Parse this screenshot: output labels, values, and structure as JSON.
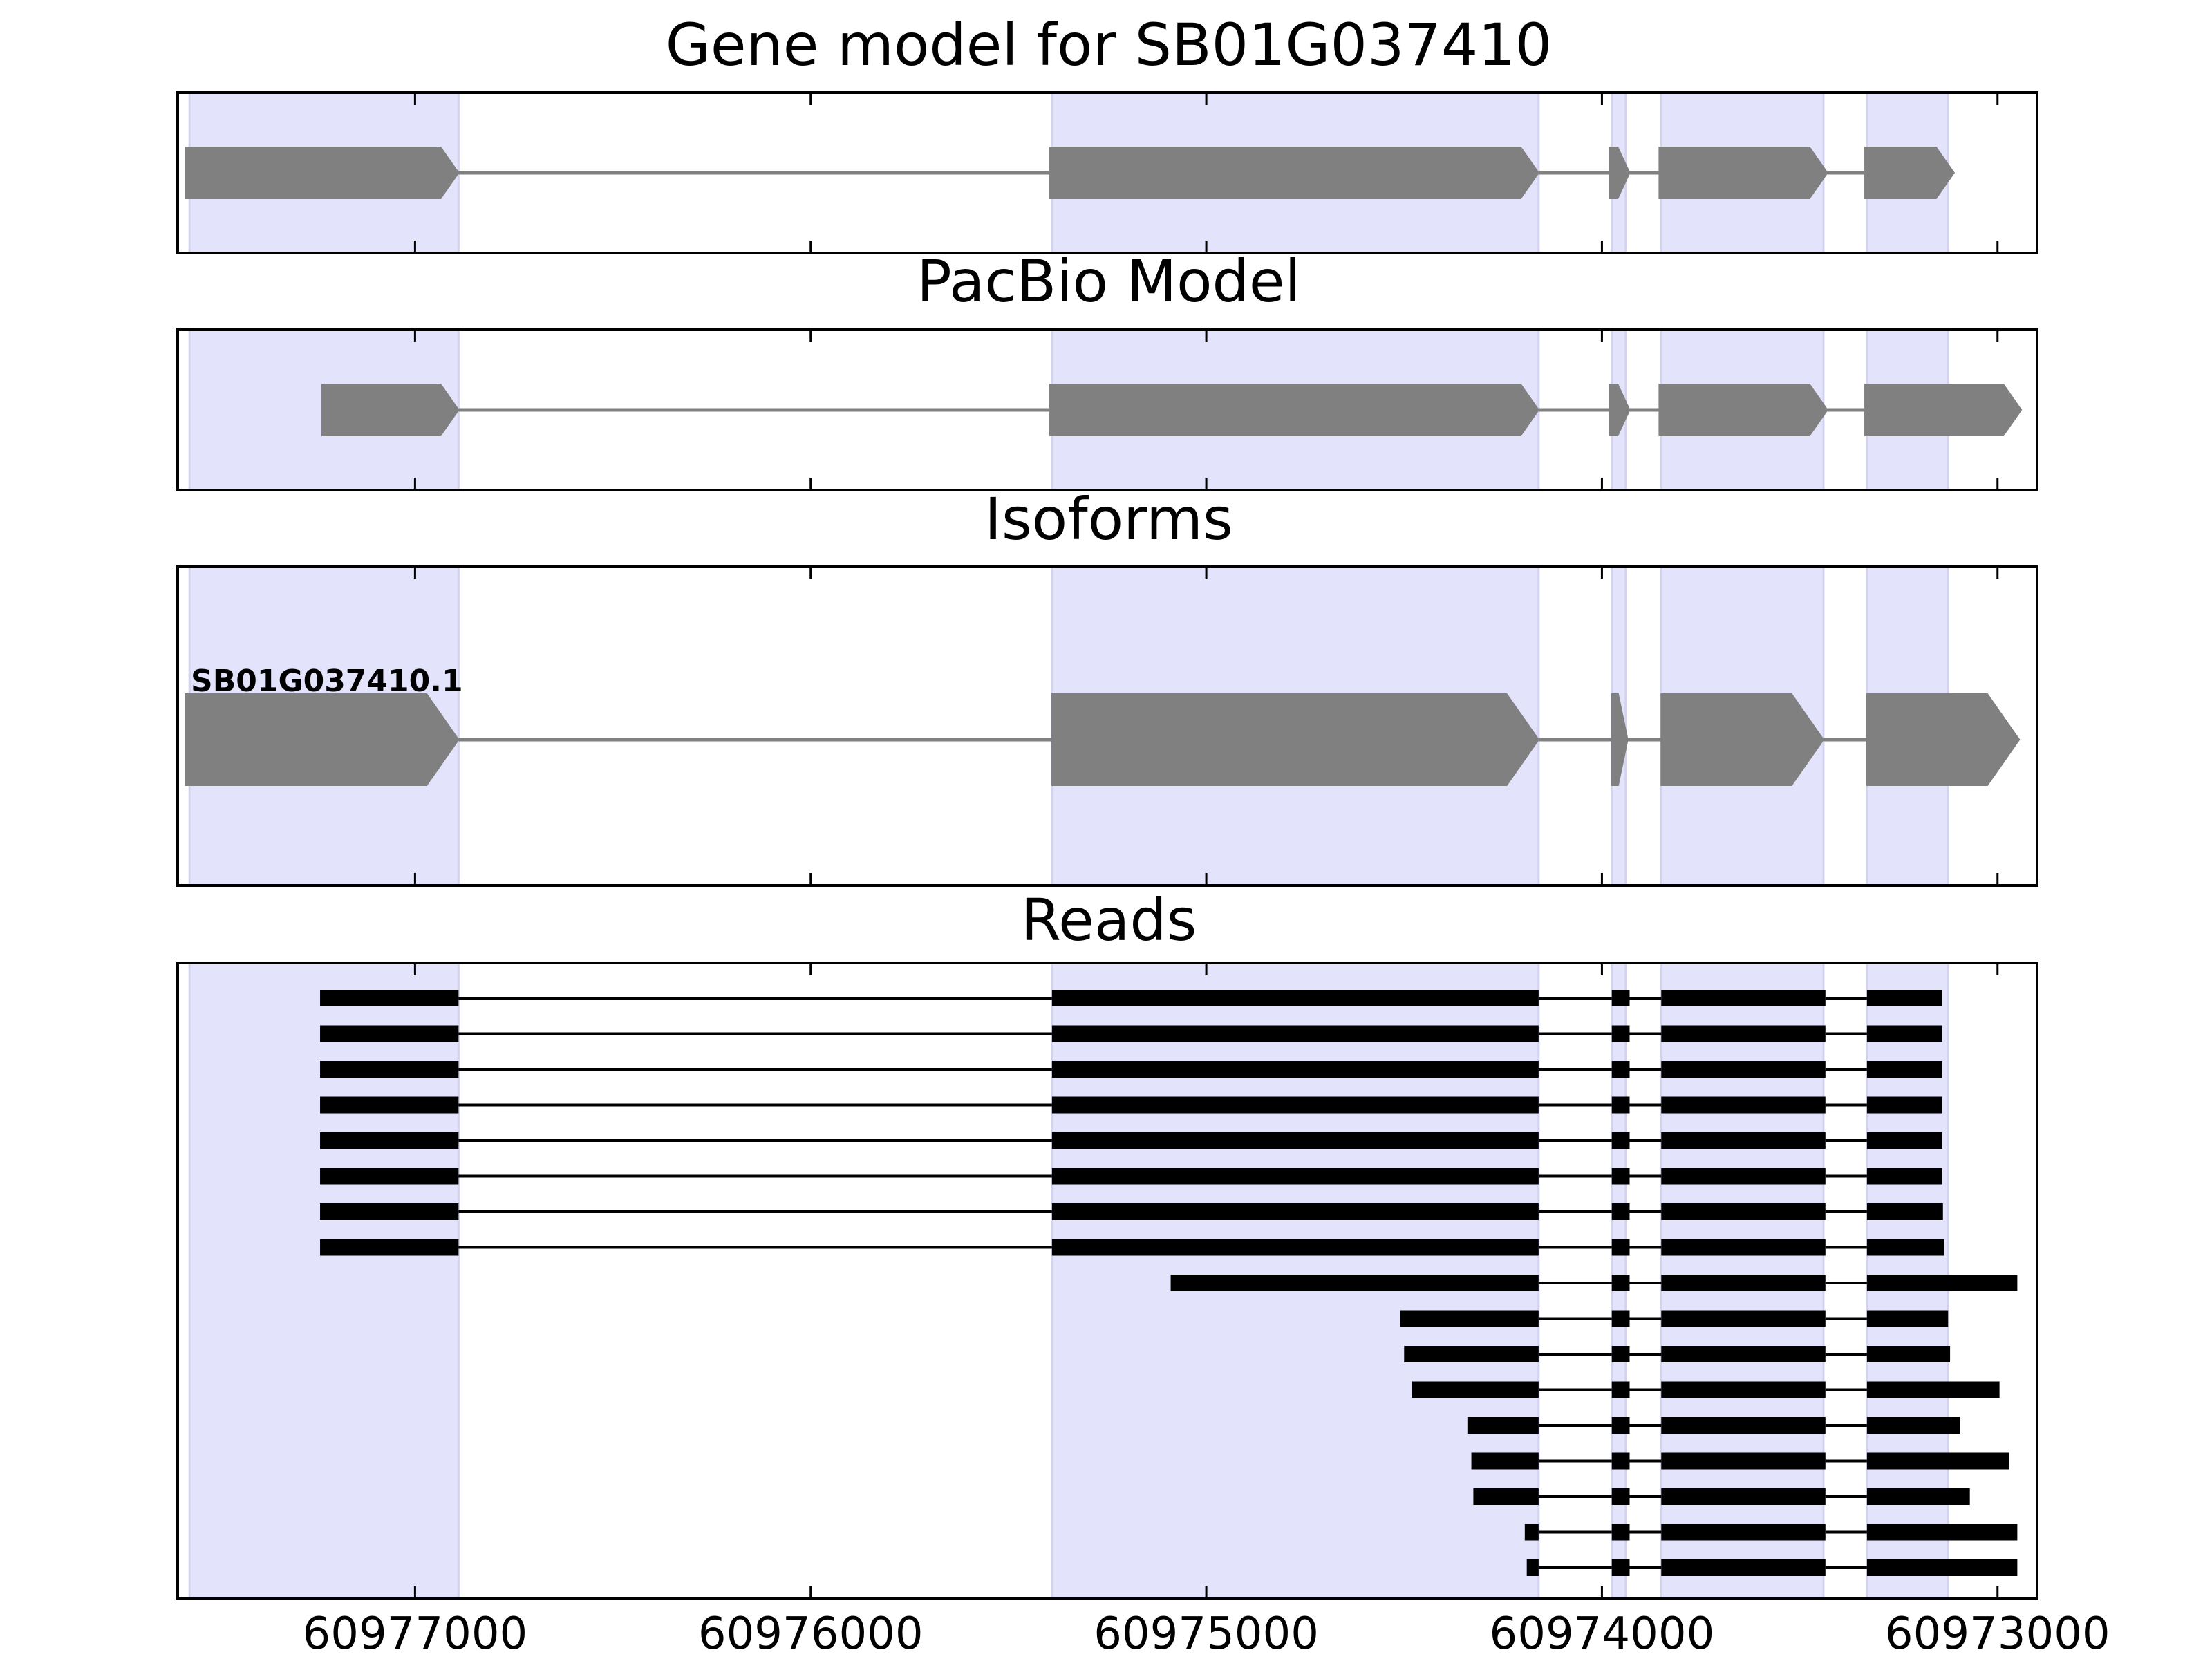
{
  "chart_data": [
    {
      "type": "gene-model",
      "title": "Gene model for SB01G037410",
      "xlim": [
        60977600,
        60972900
      ],
      "exon_highlights": [
        [
          60977570,
          60976890
        ],
        [
          60975390,
          60974160
        ],
        [
          60973975,
          60973940
        ],
        [
          60973850,
          60973440
        ],
        [
          60973330,
          60973125
        ]
      ],
      "features": [
        {
          "exons": [
            [
              60977580,
              60976890
            ],
            [
              60975395,
              60974160
            ],
            [
              60973980,
              60973930
            ],
            [
              60973855,
              60973430
            ],
            [
              60973335,
              60973110
            ]
          ]
        }
      ]
    },
    {
      "type": "gene-model",
      "title": "PacBio Model",
      "xlim": [
        60977600,
        60972900
      ],
      "exon_highlights": [
        [
          60977570,
          60976890
        ],
        [
          60975390,
          60974160
        ],
        [
          60973975,
          60973940
        ],
        [
          60973850,
          60973440
        ],
        [
          60973330,
          60973125
        ]
      ],
      "features": [
        {
          "exons": [
            [
              60977235,
              60976890
            ],
            [
              60975395,
              60974160
            ],
            [
              60973980,
              60973930
            ],
            [
              60973855,
              60973430
            ],
            [
              60973335,
              60972940
            ]
          ]
        }
      ]
    },
    {
      "type": "gene-model",
      "title": "Isoforms",
      "xlim": [
        60977600,
        60972900
      ],
      "exon_highlights": [
        [
          60977570,
          60976890
        ],
        [
          60975390,
          60974160
        ],
        [
          60973975,
          60973940
        ],
        [
          60973850,
          60973440
        ],
        [
          60973330,
          60973125
        ]
      ],
      "features": [
        {
          "label": "SB01G037410.1",
          "exons": [
            [
              60977580,
              60976890
            ],
            [
              60975390,
              60974160
            ],
            [
              60973975,
              60973935
            ],
            [
              60973850,
              60973440
            ],
            [
              60973330,
              60972945
            ]
          ]
        }
      ]
    },
    {
      "type": "reads",
      "title": "Reads",
      "xlim": [
        60977600,
        60972900
      ],
      "xticks": [
        60977000,
        60976000,
        60975000,
        60974000,
        60973000
      ],
      "xtick_labels": [
        "60977000",
        "60976000",
        "60975000",
        "60974000",
        "60973000"
      ],
      "exon_highlights": [
        [
          60977570,
          60976890
        ],
        [
          60975390,
          60974160
        ],
        [
          60973975,
          60973940
        ],
        [
          60973850,
          60973440
        ],
        [
          60973330,
          60973125
        ]
      ],
      "reads": [
        {
          "exons": [
            [
              60977240,
              60976890
            ],
            [
              60975390,
              60974160
            ],
            [
              60973975,
              60973930
            ],
            [
              60973850,
              60973435
            ],
            [
              60973330,
              60973140
            ]
          ]
        },
        {
          "exons": [
            [
              60977240,
              60976890
            ],
            [
              60975390,
              60974160
            ],
            [
              60973975,
              60973930
            ],
            [
              60973850,
              60973435
            ],
            [
              60973330,
              60973140
            ]
          ]
        },
        {
          "exons": [
            [
              60977240,
              60976890
            ],
            [
              60975390,
              60974160
            ],
            [
              60973975,
              60973930
            ],
            [
              60973850,
              60973435
            ],
            [
              60973330,
              60973140
            ]
          ]
        },
        {
          "exons": [
            [
              60977240,
              60976890
            ],
            [
              60975390,
              60974160
            ],
            [
              60973975,
              60973930
            ],
            [
              60973850,
              60973435
            ],
            [
              60973330,
              60973140
            ]
          ]
        },
        {
          "exons": [
            [
              60977240,
              60976890
            ],
            [
              60975390,
              60974160
            ],
            [
              60973975,
              60973930
            ],
            [
              60973850,
              60973435
            ],
            [
              60973330,
              60973140
            ]
          ]
        },
        {
          "exons": [
            [
              60977240,
              60976890
            ],
            [
              60975390,
              60974160
            ],
            [
              60973975,
              60973930
            ],
            [
              60973850,
              60973435
            ],
            [
              60973330,
              60973140
            ]
          ]
        },
        {
          "exons": [
            [
              60977240,
              60976890
            ],
            [
              60975390,
              60974160
            ],
            [
              60973975,
              60973930
            ],
            [
              60973850,
              60973435
            ],
            [
              60973330,
              60973138
            ]
          ]
        },
        {
          "exons": [
            [
              60977240,
              60976890
            ],
            [
              60975390,
              60974160
            ],
            [
              60973975,
              60973930
            ],
            [
              60973850,
              60973435
            ],
            [
              60973330,
              60973135
            ]
          ]
        },
        {
          "exons": [
            [
              60975090,
              60974160
            ],
            [
              60973975,
              60973930
            ],
            [
              60973850,
              60973435
            ],
            [
              60973330,
              60972950
            ]
          ]
        },
        {
          "exons": [
            [
              60974510,
              60974160
            ],
            [
              60973975,
              60973930
            ],
            [
              60973850,
              60973435
            ],
            [
              60973330,
              60973125
            ]
          ]
        },
        {
          "exons": [
            [
              60974500,
              60974160
            ],
            [
              60973975,
              60973930
            ],
            [
              60973850,
              60973435
            ],
            [
              60973330,
              60973120
            ]
          ]
        },
        {
          "exons": [
            [
              60974480,
              60974160
            ],
            [
              60973975,
              60973930
            ],
            [
              60973850,
              60973435
            ],
            [
              60973330,
              60972995
            ]
          ]
        },
        {
          "exons": [
            [
              60974340,
              60974160
            ],
            [
              60973975,
              60973930
            ],
            [
              60973850,
              60973435
            ],
            [
              60973330,
              60973095
            ]
          ]
        },
        {
          "exons": [
            [
              60974330,
              60974160
            ],
            [
              60973975,
              60973930
            ],
            [
              60973850,
              60973435
            ],
            [
              60973330,
              60972970
            ]
          ]
        },
        {
          "exons": [
            [
              60974325,
              60974160
            ],
            [
              60973975,
              60973930
            ],
            [
              60973850,
              60973435
            ],
            [
              60973330,
              60973070
            ]
          ]
        },
        {
          "exons": [
            [
              60974195,
              60974160
            ],
            [
              60973975,
              60973930
            ],
            [
              60973850,
              60973435
            ],
            [
              60973330,
              60972950
            ]
          ]
        },
        {
          "exons": [
            [
              60974190,
              60974160
            ],
            [
              60973975,
              60973930
            ],
            [
              60973850,
              60973435
            ],
            [
              60973330,
              60972950
            ]
          ]
        }
      ]
    }
  ]
}
